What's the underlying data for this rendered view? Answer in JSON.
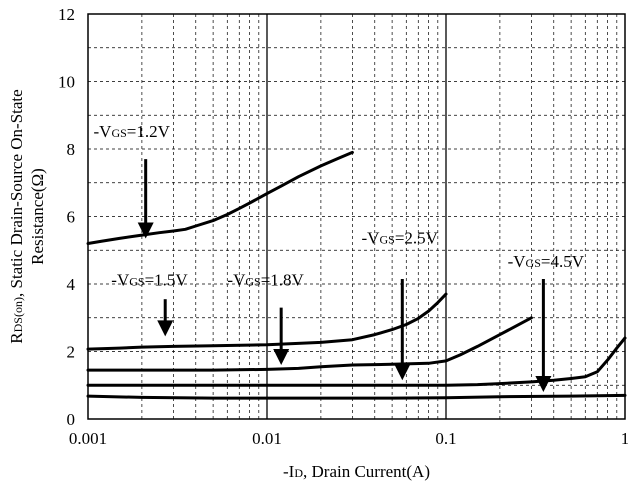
{
  "chart_data": {
    "type": "line",
    "xscale": "log",
    "xlim": [
      0.001,
      1
    ],
    "ylim": [
      0,
      12
    ],
    "grid": true,
    "x_ticks": [
      "0.001",
      "0.01",
      "0.1",
      "1"
    ],
    "y_ticks": [
      "0",
      "2",
      "4",
      "6",
      "8",
      "10",
      "12"
    ],
    "xlabel": {
      "prefix": "-I",
      "sub": "D",
      "rest": ", Drain Current(A)"
    },
    "ylabel_line1": {
      "prefix": "R",
      "sub": "DS(on)",
      "rest": ", Static Drain-Source On-State"
    },
    "ylabel_line2": "Resistance(Ω)",
    "series": [
      {
        "label": {
          "prefix": "-V",
          "sub": "GS",
          "rest": "=1.2V"
        },
        "x": [
          0.001,
          0.0012,
          0.0015,
          0.002,
          0.0025,
          0.003,
          0.0035,
          0.004,
          0.005,
          0.006,
          0.007,
          0.008,
          0.01,
          0.012,
          0.015,
          0.02,
          0.025,
          0.03
        ],
        "y": [
          5.2,
          5.27,
          5.35,
          5.45,
          5.52,
          5.57,
          5.62,
          5.72,
          5.88,
          6.06,
          6.24,
          6.4,
          6.68,
          6.9,
          7.18,
          7.5,
          7.72,
          7.9
        ]
      },
      {
        "label": {
          "prefix": "-V",
          "sub": "GS",
          "rest": "=1.5V"
        },
        "x": [
          0.001,
          0.0015,
          0.002,
          0.003,
          0.005,
          0.01,
          0.02,
          0.03,
          0.04,
          0.05,
          0.06,
          0.07,
          0.08,
          0.09,
          0.1
        ],
        "y": [
          2.07,
          2.1,
          2.13,
          2.15,
          2.17,
          2.2,
          2.27,
          2.35,
          2.5,
          2.65,
          2.8,
          2.98,
          3.2,
          3.45,
          3.7
        ]
      },
      {
        "label": {
          "prefix": "-V",
          "sub": "GS",
          "rest": "=1.8V"
        },
        "x": [
          0.001,
          0.002,
          0.005,
          0.01,
          0.015,
          0.02,
          0.03,
          0.05,
          0.08,
          0.1,
          0.12,
          0.15,
          0.2,
          0.3
        ],
        "y": [
          1.45,
          1.45,
          1.45,
          1.47,
          1.5,
          1.55,
          1.6,
          1.62,
          1.65,
          1.72,
          1.9,
          2.15,
          2.5,
          3.0
        ]
      },
      {
        "label": {
          "prefix": "-V",
          "sub": "GS",
          "rest": "=2.5V"
        },
        "x": [
          0.001,
          0.01,
          0.05,
          0.1,
          0.15,
          0.2,
          0.3,
          0.4,
          0.5,
          0.6,
          0.7,
          0.8,
          0.9,
          1.0
        ],
        "y": [
          1.0,
          1.0,
          1.0,
          1.0,
          1.02,
          1.05,
          1.1,
          1.15,
          1.2,
          1.25,
          1.4,
          1.75,
          2.1,
          2.4
        ]
      },
      {
        "label": {
          "prefix": "-V",
          "sub": "GS",
          "rest": "=4.5V"
        },
        "x": [
          0.001,
          0.002,
          0.005,
          0.01,
          0.05,
          0.1,
          0.2,
          0.5,
          1.0
        ],
        "y": [
          0.68,
          0.64,
          0.62,
          0.62,
          0.62,
          0.63,
          0.66,
          0.68,
          0.7
        ]
      }
    ],
    "annotations": [
      {
        "series": 0,
        "text_x": 0.00175,
        "text_y": 8.35,
        "arrow_x": 0.0021,
        "arrow_from": 7.7,
        "arrow_to": 5.35
      },
      {
        "series": 1,
        "text_x": 0.0022,
        "text_y": 3.95,
        "arrow_x": 0.0027,
        "arrow_from": 3.55,
        "arrow_to": 2.45
      },
      {
        "series": 2,
        "text_x": 0.0098,
        "text_y": 3.95,
        "arrow_x": 0.012,
        "arrow_from": 3.3,
        "arrow_to": 1.6
      },
      {
        "series": 3,
        "text_x": 0.055,
        "text_y": 5.2,
        "arrow_x": 0.057,
        "arrow_from": 4.15,
        "arrow_to": 1.15
      },
      {
        "series": 4,
        "text_x": 0.36,
        "text_y": 4.5,
        "arrow_x": 0.35,
        "arrow_from": 4.15,
        "arrow_to": 0.8
      }
    ]
  }
}
